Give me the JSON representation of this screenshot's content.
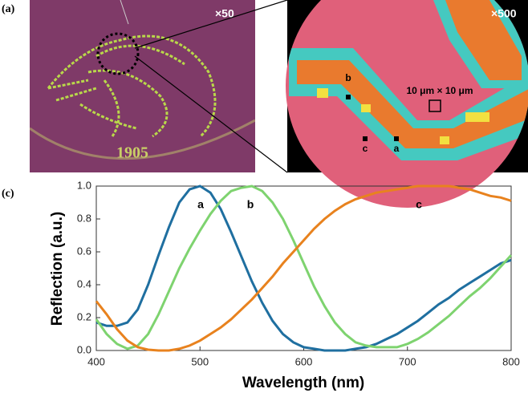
{
  "panel_a": {
    "label": "(a)",
    "left_image": {
      "magnification": "×50",
      "year": "1905"
    },
    "right_image": {
      "magnification": "×500",
      "points": [
        "b",
        "c",
        "a"
      ],
      "scale": "10 μm × 10 μm"
    }
  },
  "panel_c": {
    "label": "(c)"
  },
  "chart_data": {
    "type": "line",
    "x_label": "Wavelength (nm)",
    "y_label": "Reflection (a.u.)",
    "x": [
      400,
      410,
      420,
      430,
      440,
      450,
      460,
      470,
      480,
      490,
      500,
      510,
      520,
      530,
      540,
      550,
      560,
      570,
      580,
      590,
      600,
      610,
      620,
      630,
      640,
      650,
      660,
      670,
      680,
      690,
      700,
      710,
      720,
      730,
      740,
      750,
      760,
      770,
      780,
      790,
      800
    ],
    "series": [
      {
        "name": "a",
        "color": "#1f6fa0",
        "values": [
          0.17,
          0.15,
          0.15,
          0.17,
          0.25,
          0.4,
          0.58,
          0.75,
          0.9,
          0.98,
          1.0,
          0.96,
          0.86,
          0.72,
          0.57,
          0.42,
          0.29,
          0.18,
          0.1,
          0.05,
          0.02,
          0.01,
          0.0,
          0.0,
          0.0,
          0.01,
          0.02,
          0.04,
          0.07,
          0.1,
          0.14,
          0.18,
          0.23,
          0.28,
          0.32,
          0.37,
          0.41,
          0.45,
          0.49,
          0.53,
          0.55
        ]
      },
      {
        "name": "b",
        "color": "#7ed36f",
        "values": [
          0.19,
          0.1,
          0.04,
          0.01,
          0.03,
          0.1,
          0.22,
          0.36,
          0.5,
          0.62,
          0.73,
          0.83,
          0.91,
          0.97,
          0.99,
          1.0,
          0.97,
          0.9,
          0.8,
          0.67,
          0.53,
          0.39,
          0.27,
          0.17,
          0.1,
          0.05,
          0.03,
          0.02,
          0.02,
          0.02,
          0.04,
          0.07,
          0.11,
          0.16,
          0.21,
          0.27,
          0.33,
          0.38,
          0.44,
          0.51,
          0.58
        ]
      },
      {
        "name": "c",
        "color": "#e8821e",
        "values": [
          0.3,
          0.22,
          0.13,
          0.06,
          0.02,
          0.005,
          0.0,
          0.0,
          0.01,
          0.03,
          0.06,
          0.1,
          0.14,
          0.19,
          0.25,
          0.31,
          0.38,
          0.45,
          0.53,
          0.6,
          0.67,
          0.74,
          0.8,
          0.85,
          0.89,
          0.92,
          0.94,
          0.96,
          0.97,
          0.98,
          0.99,
          1.0,
          1.0,
          1.0,
          1.0,
          0.99,
          0.98,
          0.96,
          0.94,
          0.93,
          0.91
        ]
      }
    ],
    "xlim": [
      400,
      800
    ],
    "xticks": [
      400,
      500,
      600,
      700,
      800
    ],
    "ylim": [
      0,
      1
    ],
    "yticks": [
      {
        "value": 0,
        "label": "0.0"
      },
      {
        "value": 0.2,
        "label": "0.2"
      },
      {
        "value": 0.4,
        "label": "0.4"
      },
      {
        "value": 0.6,
        "label": "0.6"
      },
      {
        "value": 0.8,
        "label": "0.8"
      },
      {
        "value": 1,
        "label": "1.0"
      }
    ]
  }
}
